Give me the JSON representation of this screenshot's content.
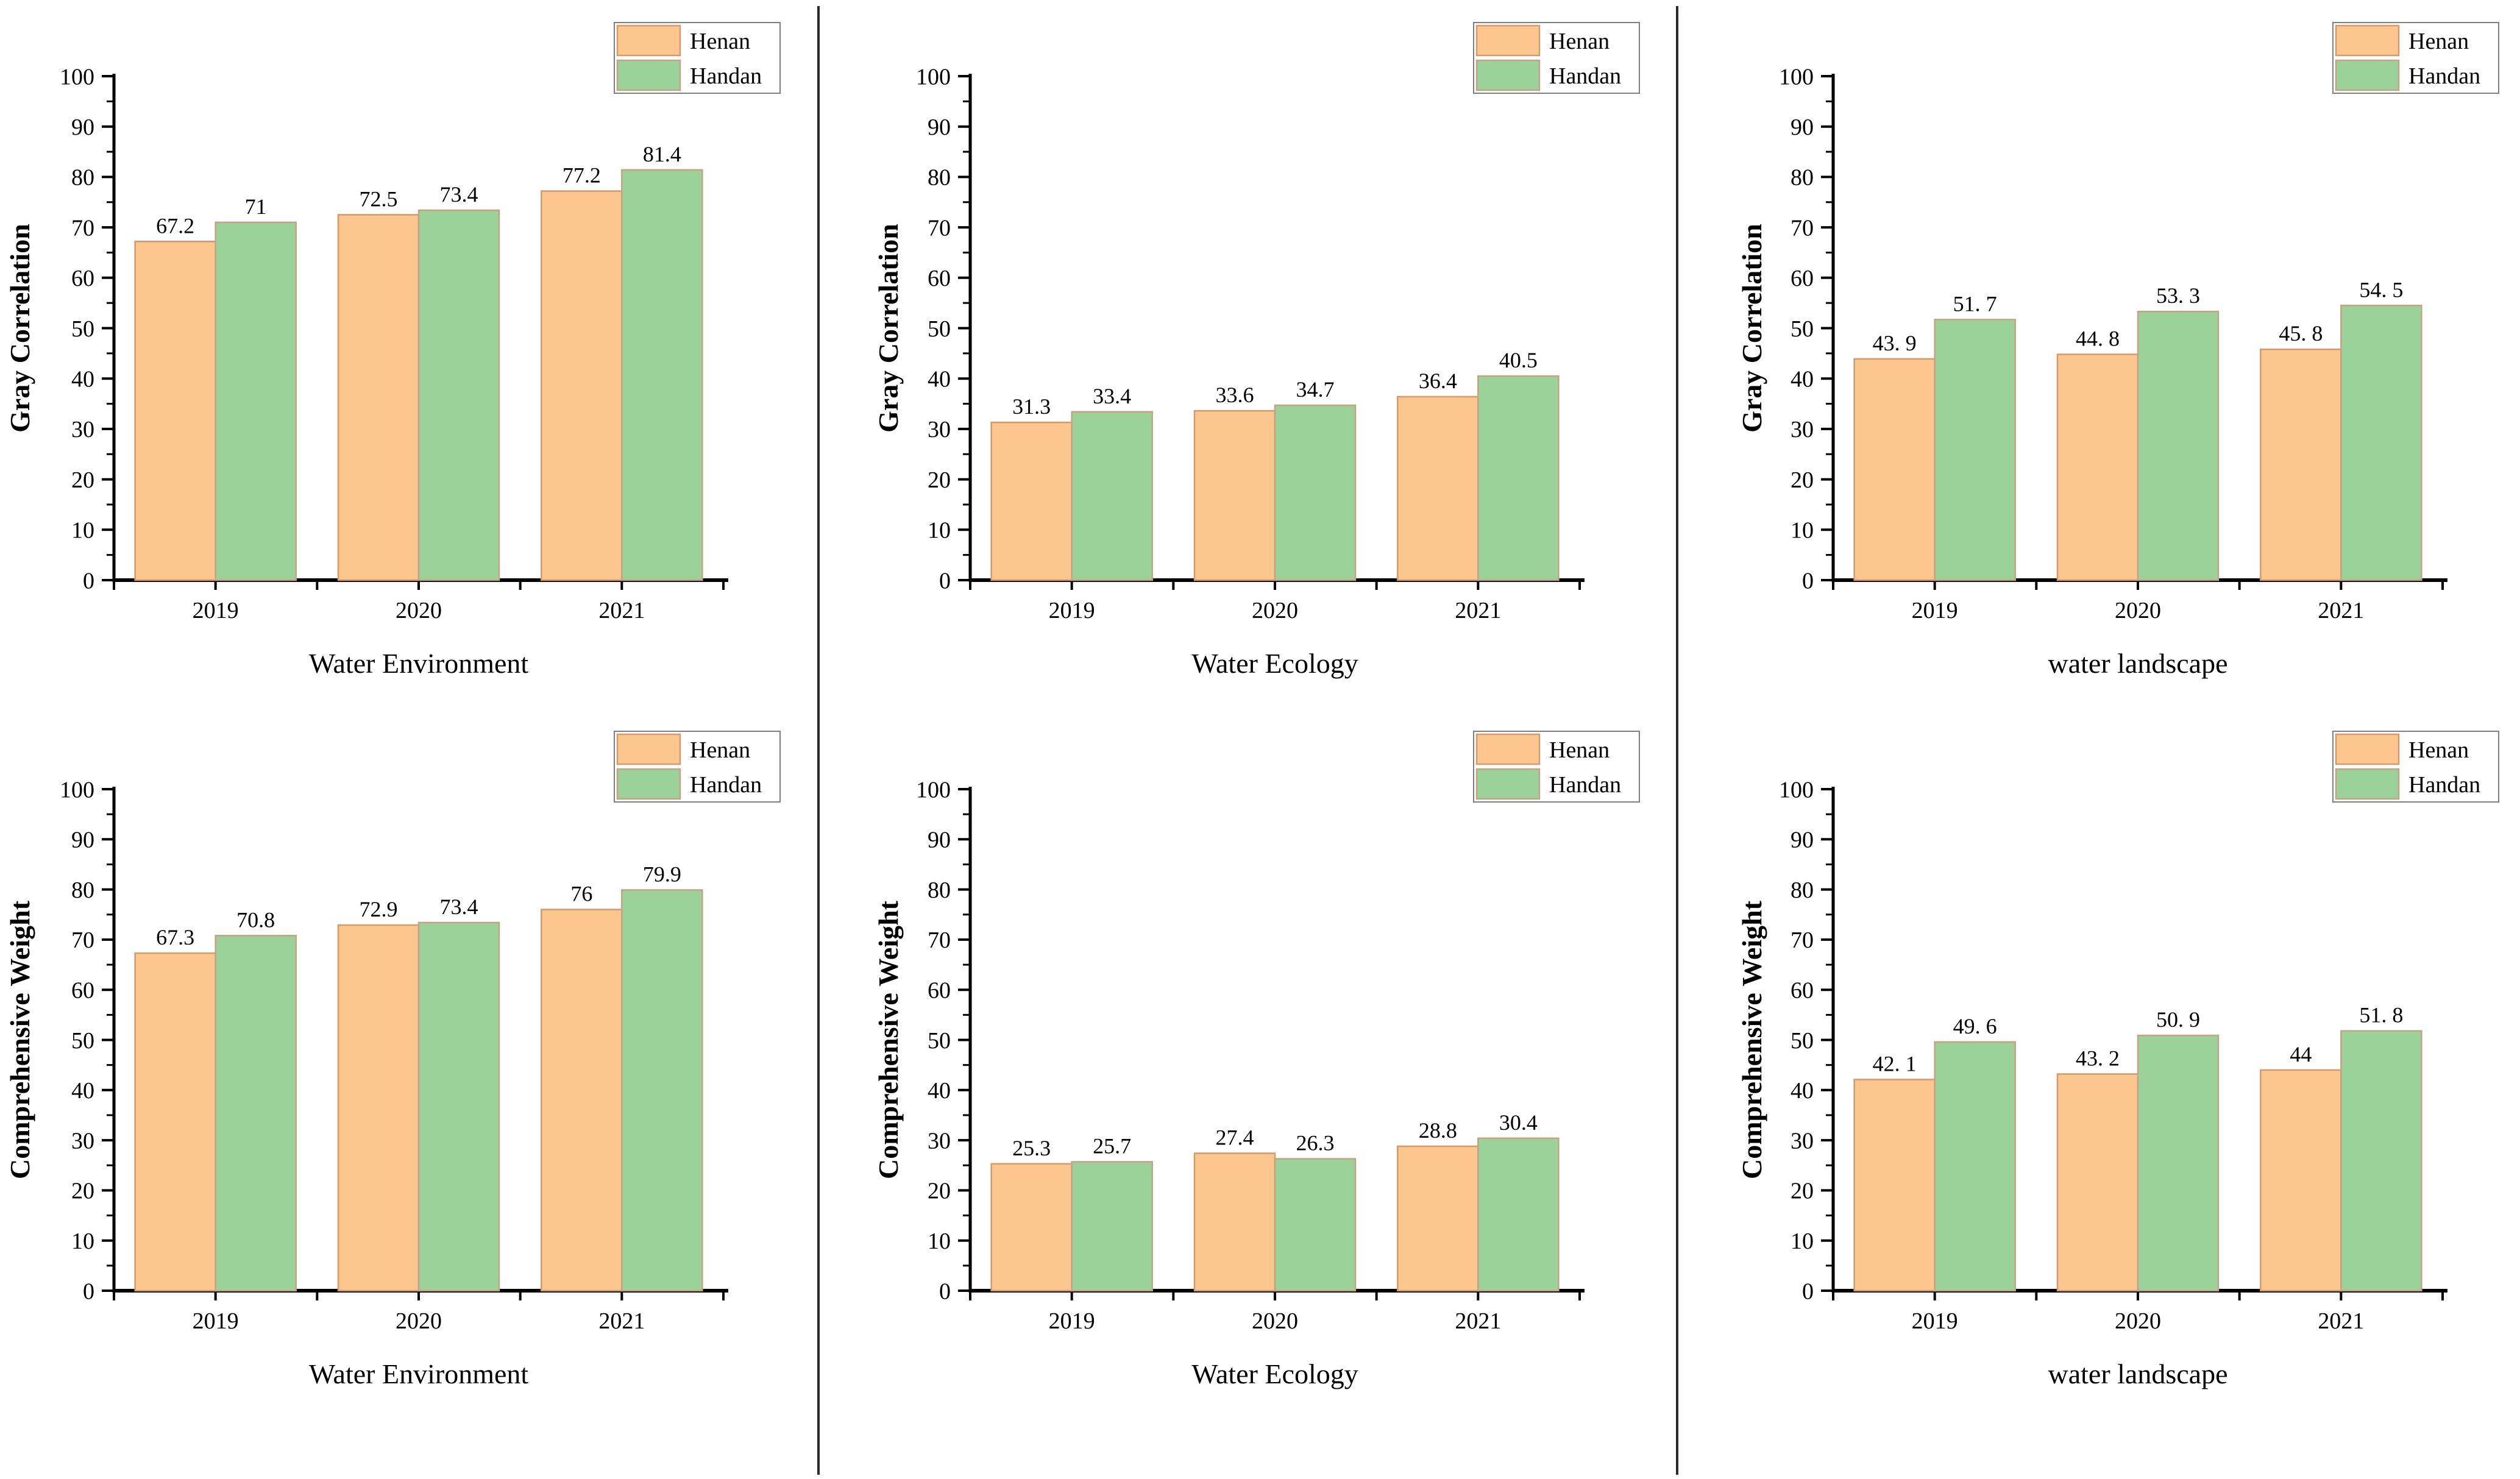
{
  "figure": {
    "background": "#ffffff",
    "divider_color": "#2b2b2b",
    "axis_color": "#000000",
    "legend_entries": [
      "Henan",
      "Handan"
    ],
    "series_colors": {
      "Henan": {
        "fill": "#fbc78e",
        "edge": "#d29a6d"
      },
      "Handan": {
        "fill": "#9ad29a",
        "edge": "#c8a184"
      }
    },
    "legend_border_color": "#7f7f7f"
  },
  "chart_data": [
    {
      "type": "bar",
      "position": {
        "row": 0,
        "col": 0
      },
      "ylabel": "Gray Correlation",
      "xlabel": "Water Environment",
      "categories": [
        "2019",
        "2020",
        "2021"
      ],
      "ylim": [
        0,
        100
      ],
      "ytick_step": 10,
      "grid": false,
      "legend_position": "top-right",
      "series": [
        {
          "name": "Henan",
          "values": [
            67.2,
            72.5,
            77.2
          ],
          "labels": [
            "67.2",
            "72.5",
            "77.2"
          ]
        },
        {
          "name": "Handan",
          "values": [
            71,
            73.4,
            81.4
          ],
          "labels": [
            "71",
            "73.4",
            "81.4"
          ]
        }
      ]
    },
    {
      "type": "bar",
      "position": {
        "row": 0,
        "col": 1
      },
      "ylabel": "Gray Correlation",
      "xlabel": "Water Ecology",
      "categories": [
        "2019",
        "2020",
        "2021"
      ],
      "ylim": [
        0,
        100
      ],
      "ytick_step": 10,
      "grid": false,
      "legend_position": "top-right",
      "series": [
        {
          "name": "Henan",
          "values": [
            31.3,
            33.6,
            36.4
          ],
          "labels": [
            "31.3",
            "33.6",
            "36.4"
          ]
        },
        {
          "name": "Handan",
          "values": [
            33.4,
            34.7,
            40.5
          ],
          "labels": [
            "33.4",
            "34.7",
            "40.5"
          ]
        }
      ]
    },
    {
      "type": "bar",
      "position": {
        "row": 0,
        "col": 2
      },
      "ylabel": "Gray Correlation",
      "xlabel": "water landscape",
      "categories": [
        "2019",
        "2020",
        "2021"
      ],
      "ylim": [
        0,
        100
      ],
      "ytick_step": 10,
      "grid": false,
      "legend_position": "top-right",
      "series": [
        {
          "name": "Henan",
          "values": [
            43.9,
            44.8,
            45.8
          ],
          "labels": [
            "43. 9",
            "44. 8",
            "45. 8"
          ]
        },
        {
          "name": "Handan",
          "values": [
            51.7,
            53.3,
            54.5
          ],
          "labels": [
            "51. 7",
            "53. 3",
            "54. 5"
          ]
        }
      ]
    },
    {
      "type": "bar",
      "position": {
        "row": 1,
        "col": 0
      },
      "ylabel": "Comprehensive Weight",
      "xlabel": "Water Environment",
      "categories": [
        "2019",
        "2020",
        "2021"
      ],
      "ylim": [
        0,
        100
      ],
      "ytick_step": 10,
      "grid": false,
      "legend_position": "top-right",
      "series": [
        {
          "name": "Henan",
          "values": [
            67.3,
            72.9,
            76
          ],
          "labels": [
            "67.3",
            "72.9",
            "76"
          ]
        },
        {
          "name": "Handan",
          "values": [
            70.8,
            73.4,
            79.9
          ],
          "labels": [
            "70.8",
            "73.4",
            "79.9"
          ]
        }
      ]
    },
    {
      "type": "bar",
      "position": {
        "row": 1,
        "col": 1
      },
      "ylabel": "Comprehensive Weight",
      "xlabel": "Water Ecology",
      "categories": [
        "2019",
        "2020",
        "2021"
      ],
      "ylim": [
        0,
        100
      ],
      "ytick_step": 10,
      "grid": false,
      "legend_position": "top-right",
      "series": [
        {
          "name": "Henan",
          "values": [
            25.3,
            27.4,
            28.8
          ],
          "labels": [
            "25.3",
            "27.4",
            "28.8"
          ]
        },
        {
          "name": "Handan",
          "values": [
            25.7,
            26.3,
            30.4
          ],
          "labels": [
            "25.7",
            "26.3",
            "30.4"
          ]
        }
      ]
    },
    {
      "type": "bar",
      "position": {
        "row": 1,
        "col": 2
      },
      "ylabel": "Comprehensive Weight",
      "xlabel": "water landscape",
      "categories": [
        "2019",
        "2020",
        "2021"
      ],
      "ylim": [
        0,
        100
      ],
      "ytick_step": 10,
      "grid": false,
      "legend_position": "top-right",
      "series": [
        {
          "name": "Henan",
          "values": [
            42.1,
            43.2,
            44
          ],
          "labels": [
            "42. 1",
            "43. 2",
            "44"
          ]
        },
        {
          "name": "Handan",
          "values": [
            49.6,
            50.9,
            51.8
          ],
          "labels": [
            "49. 6",
            "50. 9",
            "51. 8"
          ]
        }
      ]
    }
  ]
}
